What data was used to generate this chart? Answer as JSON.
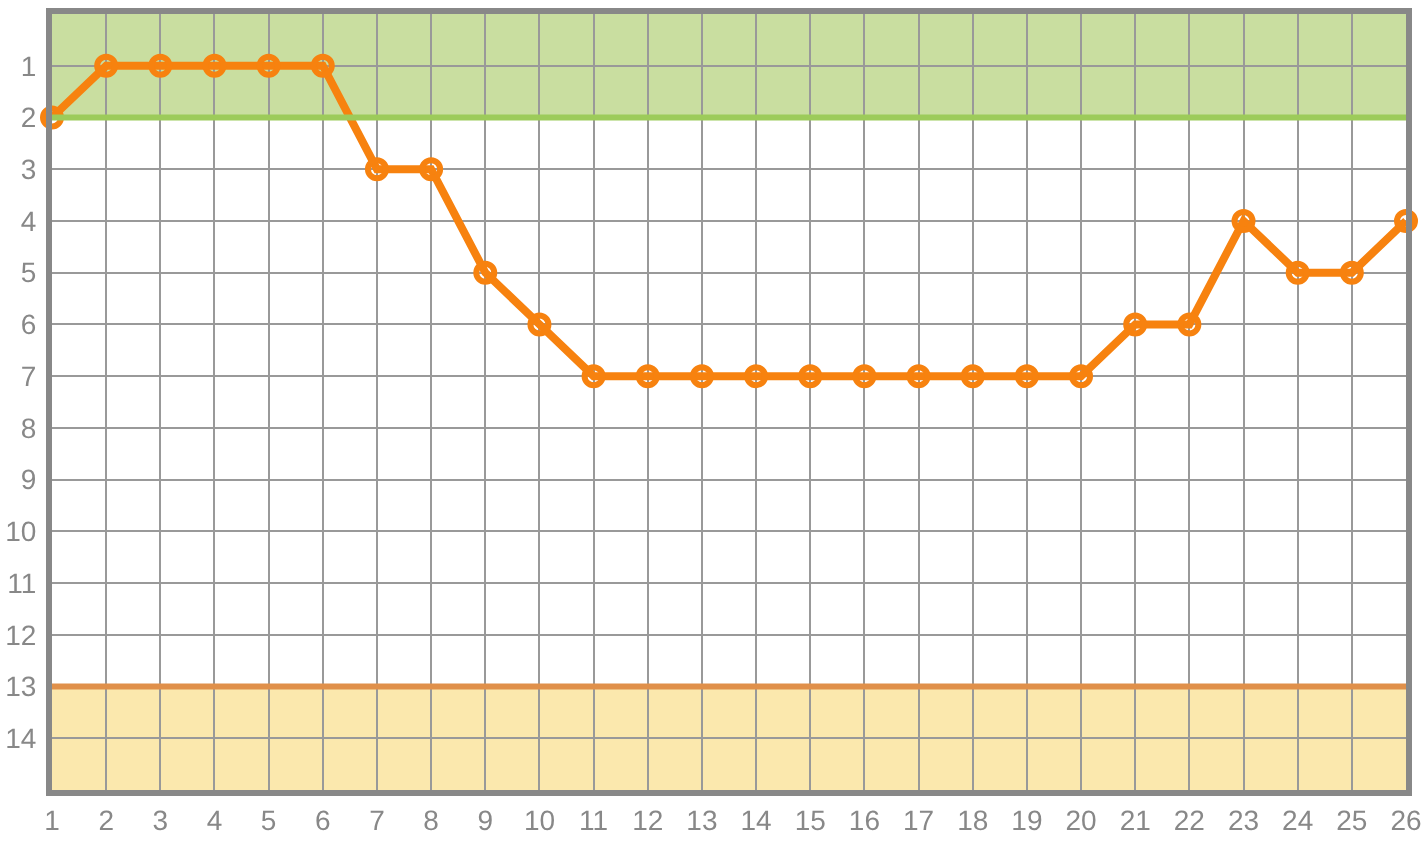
{
  "chart_data": {
    "type": "line",
    "x": [
      1,
      2,
      3,
      4,
      5,
      6,
      7,
      8,
      9,
      10,
      11,
      12,
      13,
      14,
      15,
      16,
      17,
      18,
      19,
      20,
      21,
      22,
      23,
      24,
      25,
      26
    ],
    "series": [
      {
        "color": "#f7820f",
        "values": [
          2,
          1,
          1,
          1,
          1,
          1,
          3,
          3,
          5,
          6,
          7,
          7,
          7,
          7,
          7,
          7,
          7,
          7,
          7,
          7,
          6,
          6,
          4,
          5,
          5,
          4
        ]
      }
    ],
    "xlim": [
      1,
      26
    ],
    "xticks": [
      1,
      2,
      3,
      4,
      5,
      6,
      7,
      8,
      9,
      10,
      11,
      12,
      13,
      14,
      15,
      16,
      17,
      18,
      19,
      20,
      21,
      22,
      23,
      24,
      25,
      26
    ],
    "ylim": [
      15,
      0
    ],
    "yticks": [
      1,
      2,
      3,
      4,
      5,
      6,
      7,
      8,
      9,
      10,
      11,
      12,
      13,
      14
    ],
    "grid": true,
    "marker": "circle",
    "line_style": "solid",
    "bands": [
      {
        "axis": "y",
        "from": 0,
        "to": 2,
        "color": "#c9dea0"
      },
      {
        "axis": "y",
        "from": 13,
        "to": 15,
        "color": "#fbe8ad"
      }
    ],
    "ref_lines": [
      {
        "axis": "y",
        "value": 2,
        "color": "#9ccb5a"
      },
      {
        "axis": "y",
        "value": 13,
        "color": "#e0904a"
      }
    ]
  }
}
